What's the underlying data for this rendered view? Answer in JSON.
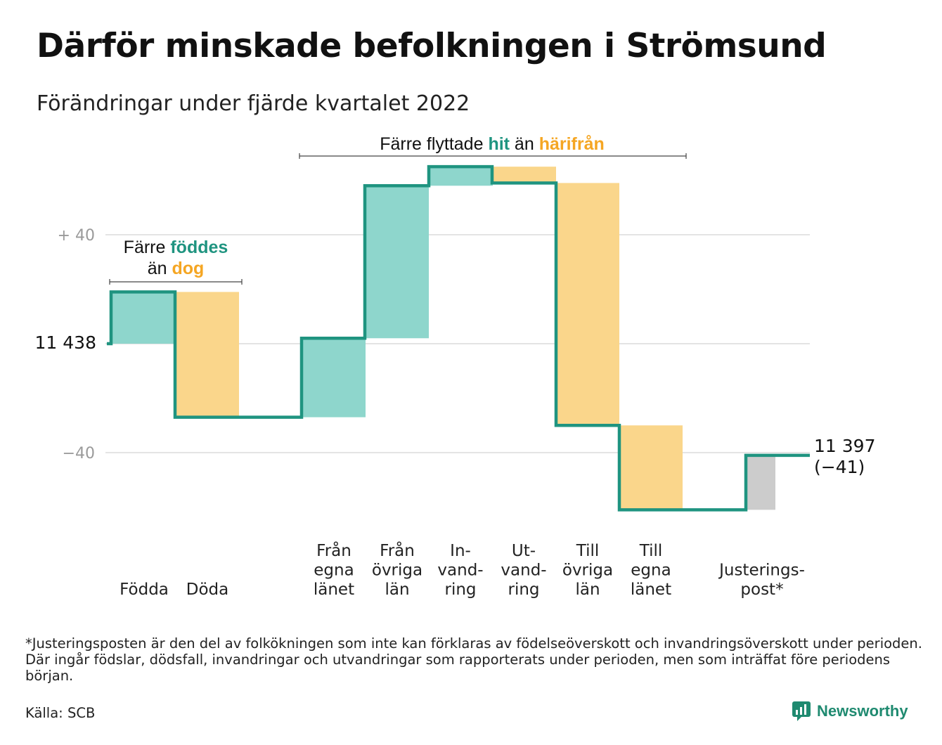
{
  "title": "Därför minskade befolkningen i Strömsund",
  "subtitle": "Förändringar under fjärde kvartalet 2022",
  "colors": {
    "increase": "#8ed6cc",
    "decrease": "#fad68b",
    "adjustment": "#cccccc",
    "line": "#1f9480",
    "grid": "#e4e4e4",
    "accent_teal": "#1f9480",
    "accent_orange": "#f5a623"
  },
  "annotations": {
    "birth_line1_pre": "Färre ",
    "birth_line1_em": "föddes",
    "birth_line2_pre": "än ",
    "birth_line2_em": "dog",
    "migration_pre": "Färre flyttade ",
    "migration_em1": "hit",
    "migration_mid": " än ",
    "migration_em2": "härifrån"
  },
  "start_label": "11 438",
  "end_label_line1": "11 397",
  "end_label_line2": "(−41)",
  "chart_data": {
    "type": "waterfall",
    "start_value": 11438,
    "end_value": 11397,
    "total_change": -41,
    "y_axis": {
      "ticks": [
        40,
        -40
      ],
      "tick_labels": [
        "+ 40",
        "−40"
      ],
      "relative_to": 11438,
      "range": [
        -62,
        72
      ]
    },
    "grid": true,
    "steps": [
      {
        "category": [
          "Födda"
        ],
        "change": 19,
        "kind": "increase"
      },
      {
        "category": [
          "Döda"
        ],
        "change": -46,
        "kind": "decrease"
      },
      {
        "category": [
          "Från",
          "egna",
          "länet"
        ],
        "change": 29,
        "kind": "increase"
      },
      {
        "category": [
          "Från",
          "övriga",
          "län"
        ],
        "change": 56,
        "kind": "increase"
      },
      {
        "category": [
          "In-",
          "vand-",
          "ring"
        ],
        "change": 7,
        "kind": "increase"
      },
      {
        "category": [
          "Ut-",
          "vand-",
          "ring"
        ],
        "change": -6,
        "kind": "decrease"
      },
      {
        "category": [
          "Till",
          "övriga",
          "län"
        ],
        "change": -89,
        "kind": "decrease"
      },
      {
        "category": [
          "Till",
          "egna",
          "länet"
        ],
        "change": -31,
        "kind": "decrease"
      },
      {
        "category": [
          "Justerings-",
          "post*"
        ],
        "change": 20,
        "kind": "adjustment"
      }
    ]
  },
  "footnote": "*Justeringsposten är den del av folkökningen som inte kan förklaras av födelseöverskott och invandringsöverskott under perioden. Där ingår födslar, dödsfall, invandringar och utvandringar som rapporterats under perioden, men som inträffat före periodens början.",
  "source": "Källa: SCB",
  "logo": {
    "name": "Newsworthy",
    "icon": "chart-bubble-icon"
  }
}
